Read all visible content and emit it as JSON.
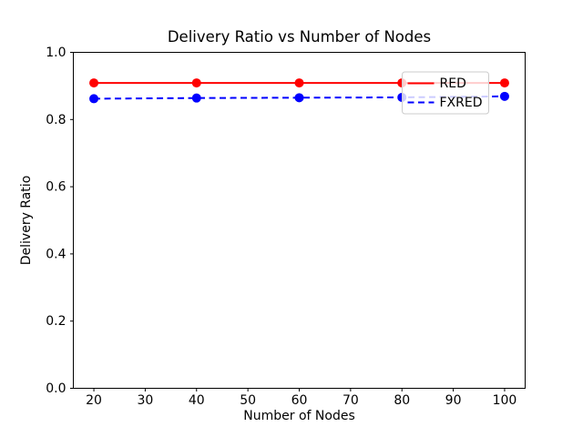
{
  "chart_data": {
    "type": "line",
    "title": "Delivery Ratio vs Number of Nodes",
    "xlabel": "Number of Nodes",
    "ylabel": "Delivery Ratio",
    "x": [
      20,
      40,
      60,
      80,
      100
    ],
    "series": [
      {
        "name": "RED",
        "color": "#ff0000",
        "line_style": "solid",
        "marker": "circle",
        "values": [
          0.909,
          0.909,
          0.909,
          0.909,
          0.909
        ]
      },
      {
        "name": "FXRED",
        "color": "#0000ff",
        "line_style": "dashed",
        "marker": "circle",
        "values": [
          0.862,
          0.864,
          0.865,
          0.866,
          0.869
        ]
      }
    ],
    "xlim": [
      16,
      104
    ],
    "ylim": [
      0.0,
      1.0
    ],
    "xticks": [
      20,
      30,
      40,
      50,
      60,
      70,
      80,
      90,
      100
    ],
    "yticks": [
      0.0,
      0.2,
      0.4,
      0.6,
      0.8,
      1.0
    ],
    "grid": false,
    "legend_position": "upper right",
    "colors": {
      "spine": "#000000",
      "background": "#ffffff",
      "legend_border": "#cccccc",
      "legend_fill": "#ffffff"
    }
  }
}
